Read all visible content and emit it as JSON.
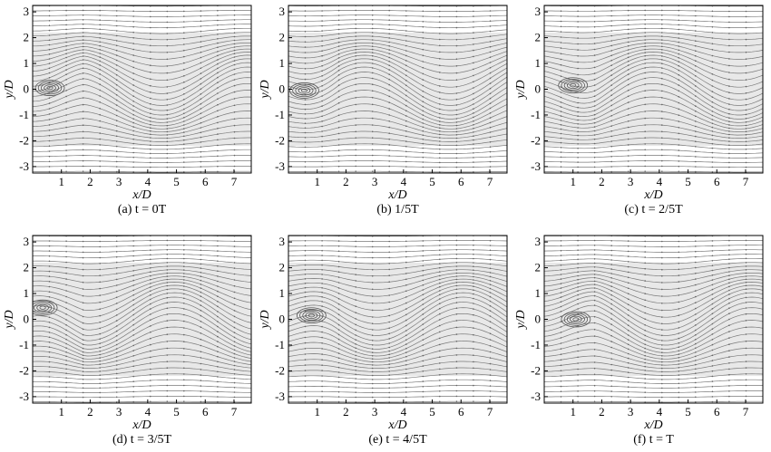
{
  "figure": {
    "x_label": "x/D",
    "y_label": "y/D",
    "x_ticks": [
      "1",
      "2",
      "3",
      "4",
      "5",
      "6",
      "7"
    ],
    "y_ticks": [
      "3",
      "2",
      "1",
      "0",
      "-1",
      "-2",
      "-3"
    ],
    "x_range": [
      0,
      7.6
    ],
    "y_range": [
      -3.25,
      3.25
    ],
    "stroke_color": "#7a7a7a",
    "panels": [
      {
        "caption": "(a) t = 0T",
        "vortex": {
          "x": 0.6,
          "y": 0.05
        },
        "wake_phase": 0.0
      },
      {
        "caption": "(b) 1/5T",
        "caption_prefix": "(b) ",
        "vortex": {
          "x": 0.55,
          "y": -0.05
        },
        "wake_phase": 1.2
      },
      {
        "caption": "(c) t = 2/5T",
        "vortex": {
          "x": 1.0,
          "y": 0.15
        },
        "wake_phase": 2.4
      },
      {
        "caption": "(d) t = 3/5T",
        "vortex": {
          "x": 0.35,
          "y": 0.45
        },
        "wake_phase": 3.6
      },
      {
        "caption": "(e) t = 4/5T",
        "vortex": {
          "x": 0.8,
          "y": 0.15
        },
        "wake_phase": 4.8
      },
      {
        "caption": "(f) t = T",
        "vortex": {
          "x": 1.1,
          "y": 0.0
        },
        "wake_phase": 6.0
      }
    ]
  }
}
